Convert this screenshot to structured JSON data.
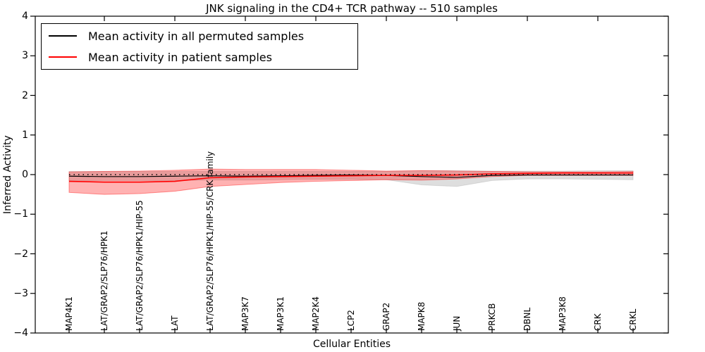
{
  "chart_data": {
    "type": "line",
    "title": "JNK signaling in the CD4+ TCR pathway -- 510 samples",
    "xlabel": "Cellular Entities",
    "ylabel": "Inferred Activity",
    "ylim": [
      -4,
      4
    ],
    "yticks": [
      -4,
      -3,
      -2,
      -1,
      0,
      1,
      2,
      3,
      4
    ],
    "ytick_labels": [
      "−4",
      "−3",
      "−2",
      "−1",
      "0",
      "1",
      "2",
      "3",
      "4"
    ],
    "grid": false,
    "legend_position": "upper left",
    "zero_line": {
      "value": 0,
      "style": "dotted",
      "color": "#000000"
    },
    "categories": [
      "MAP4K1",
      "LAT/GRAP2/SLP76/HPK1",
      "LAT/GRAP2/SLP76/HPK1/HIP-55",
      "LAT",
      "LAT/GRAP2/SLP76/HPK1/HIP-55/CRK family",
      "MAP3K7",
      "MAP3K1",
      "MAP2K4",
      "LCP2",
      "GRAP2",
      "MAPK8",
      "JUN",
      "PRKCB",
      "DBNL",
      "MAP3K8",
      "CRK",
      "CRKL"
    ],
    "series": [
      {
        "name": "Mean activity in all permuted samples",
        "color": "#000000",
        "band_color": "rgba(0,0,0,0.13)",
        "band_edge_color": "rgba(0,0,0,0.10)",
        "values": [
          -0.04,
          -0.05,
          -0.05,
          -0.04,
          -0.03,
          -0.04,
          -0.03,
          -0.02,
          -0.01,
          -0.02,
          -0.05,
          -0.07,
          -0.02,
          -0.01,
          -0.01,
          -0.01,
          -0.01
        ],
        "band_upper": [
          0.08,
          0.08,
          0.08,
          0.08,
          0.08,
          0.08,
          0.08,
          0.08,
          0.08,
          0.08,
          0.1,
          0.1,
          0.09,
          0.09,
          0.09,
          0.1,
          0.1
        ],
        "band_lower": [
          -0.15,
          -0.15,
          -0.15,
          -0.15,
          -0.14,
          -0.14,
          -0.13,
          -0.12,
          -0.12,
          -0.13,
          -0.26,
          -0.3,
          -0.15,
          -0.11,
          -0.11,
          -0.12,
          -0.13
        ]
      },
      {
        "name": "Mean activity in patient samples",
        "color": "#ff0000",
        "band_color": "rgba(255,0,0,0.30)",
        "band_edge_color": "rgba(255,0,0,0.40)",
        "values": [
          -0.17,
          -0.19,
          -0.19,
          -0.17,
          -0.08,
          -0.06,
          -0.05,
          -0.04,
          -0.03,
          -0.02,
          -0.02,
          -0.01,
          0.02,
          0.03,
          0.04,
          0.04,
          0.04
        ],
        "band_upper": [
          0.07,
          0.08,
          0.09,
          0.11,
          0.14,
          0.13,
          0.13,
          0.13,
          0.11,
          0.09,
          0.1,
          0.09,
          0.08,
          0.07,
          0.07,
          0.07,
          0.08
        ],
        "band_lower": [
          -0.45,
          -0.5,
          -0.48,
          -0.42,
          -0.3,
          -0.25,
          -0.2,
          -0.17,
          -0.15,
          -0.13,
          -0.14,
          -0.11,
          -0.05,
          -0.02,
          -0.02,
          -0.02,
          -0.02
        ]
      }
    ]
  }
}
